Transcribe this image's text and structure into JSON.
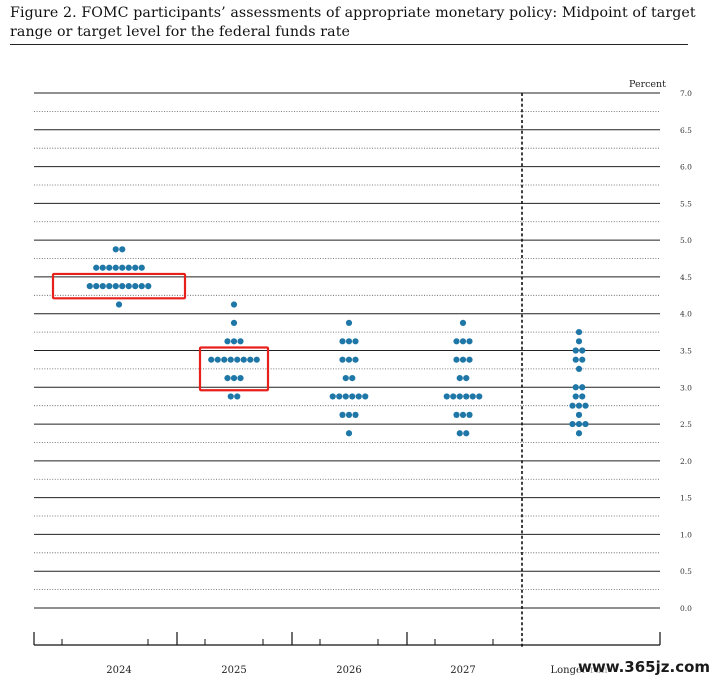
{
  "header": {
    "title": "Figure 2.  FOMC participants’ assessments of appropriate monetary policy:  Midpoint of target range or target level for the federal funds rate"
  },
  "watermark": "www.365jz.com",
  "colors": {
    "dot": "#1f77a8",
    "highlight": "#e8201c",
    "line": "#111111"
  },
  "chart_data": {
    "type": "scatter",
    "ylabel": "Percent",
    "ylim": [
      0,
      7.0
    ],
    "yticks": [
      "0.0",
      "0.5",
      "1.0",
      "1.5",
      "2.0",
      "2.5",
      "3.0",
      "3.5",
      "4.0",
      "4.5",
      "5.0",
      "5.5",
      "6.0",
      "6.5",
      "7.0"
    ],
    "categories": [
      "2024",
      "2025",
      "2026",
      "2027",
      "Longer run"
    ],
    "dots": [
      {
        "category": "2024",
        "levels": [
          [
            4.875,
            2
          ],
          [
            4.625,
            8
          ],
          [
            4.375,
            10
          ],
          [
            4.125,
            1
          ]
        ]
      },
      {
        "category": "2025",
        "levels": [
          [
            4.125,
            1
          ],
          [
            3.875,
            1
          ],
          [
            3.625,
            3
          ],
          [
            3.375,
            8
          ],
          [
            3.125,
            3
          ],
          [
            2.875,
            2
          ]
        ]
      },
      {
        "category": "2026",
        "levels": [
          [
            3.875,
            1
          ],
          [
            3.625,
            3
          ],
          [
            3.375,
            3
          ],
          [
            3.125,
            2
          ],
          [
            2.875,
            6
          ],
          [
            2.625,
            3
          ],
          [
            2.375,
            1
          ]
        ]
      },
      {
        "category": "2027",
        "levels": [
          [
            3.875,
            1
          ],
          [
            3.625,
            3
          ],
          [
            3.375,
            3
          ],
          [
            3.125,
            2
          ],
          [
            2.875,
            6
          ],
          [
            2.625,
            3
          ],
          [
            2.375,
            2
          ]
        ]
      },
      {
        "category": "Longer run",
        "levels": [
          [
            3.75,
            1
          ],
          [
            3.625,
            1
          ],
          [
            3.5,
            2
          ],
          [
            3.375,
            2
          ],
          [
            3.25,
            1
          ],
          [
            3.0,
            2
          ],
          [
            2.875,
            2
          ],
          [
            2.75,
            3
          ],
          [
            2.625,
            1
          ],
          [
            2.5,
            3
          ],
          [
            2.375,
            1
          ]
        ]
      }
    ],
    "highlights": [
      {
        "category": "2024",
        "from": 4.25,
        "to": 4.5
      },
      {
        "category": "2025",
        "from": 3.0,
        "to": 3.5
      }
    ],
    "grid": true
  }
}
